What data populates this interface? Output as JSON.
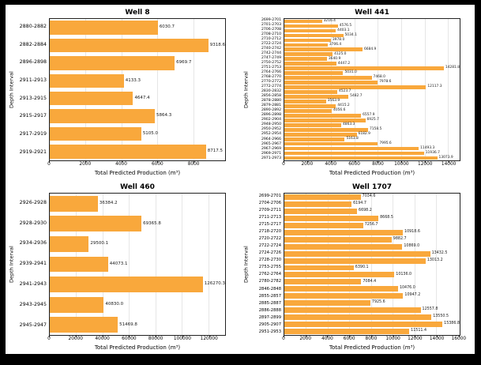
{
  "figure": {
    "background": "#000000",
    "panel_background": "#ffffff",
    "bar_color": "#F9A83C",
    "grid_color": "#e6e6e6"
  },
  "chart_data": [
    {
      "type": "bar",
      "orientation": "horizontal",
      "title": "Well 8",
      "xlabel": "Total Predicted Production (m³)",
      "ylabel": "Depth Interval",
      "categories": [
        "2880-2882",
        "2882-2884",
        "2896-2898",
        "2911-2913",
        "2913-2915",
        "2915-2917",
        "2917-2919",
        "2919-2921"
      ],
      "values": [
        6030.7,
        9318.6,
        6969.7,
        4133.3,
        4647.4,
        5864.3,
        5105.0,
        8717.5
      ],
      "xticks": [
        0,
        2000,
        4000,
        6000,
        8000
      ],
      "xlim": [
        0,
        9785
      ],
      "grid": true,
      "value_labels": true,
      "bar_color": "#F9A83C"
    },
    {
      "type": "bar",
      "orientation": "horizontal",
      "title": "Well 441",
      "xlabel": "Total Predicted Production (m³)",
      "ylabel": "Depth Interval",
      "categories": [
        "2699-2701",
        "2701-2703",
        "2706-2708",
        "2708-2710",
        "2710-2712",
        "2722-2724",
        "2740-2742",
        "2742-2744",
        "2747-2749",
        "2750-2752",
        "2751-2753",
        "2764-2766",
        "2768-2770",
        "2770-2772",
        "2772-2774",
        "2830-2832",
        "2856-2858",
        "2878-2880",
        "2879-2881",
        "2890-2892",
        "2896-2898",
        "2902-2904",
        "2948-2950",
        "2950-2952",
        "2952-2954",
        "2964-2966",
        "2965-2967",
        "2967-2969",
        "2969-2971",
        "2971-2973"
      ],
      "values": [
        3216.4,
        4576.5,
        4403.1,
        5034.1,
        3978.0,
        3706.4,
        6684.9,
        4125.0,
        3640.9,
        4447.2,
        14281.8,
        5031.0,
        7468.0,
        7978.6,
        12117.3,
        4523.7,
        5482.7,
        3563.9,
        4415.2,
        4056.6,
        6557.9,
        6925.7,
        4863.3,
        7158.5,
        6182.9,
        5163.8,
        7995.6,
        11493.3,
        11936.7,
        13073.9
      ],
      "xticks": [
        0,
        2000,
        4000,
        6000,
        8000,
        10000,
        12000,
        14000
      ],
      "xlim": [
        0,
        14996
      ],
      "grid": true,
      "value_labels": true,
      "bar_color": "#F9A83C"
    },
    {
      "type": "bar",
      "orientation": "horizontal",
      "title": "Well 460",
      "xlabel": "Total Predicted Production (m³)",
      "ylabel": "Depth Interval",
      "categories": [
        "2926-2928",
        "2928-2930",
        "2934-2936",
        "2939-2941",
        "2941-2943",
        "2943-2945",
        "2945-2947"
      ],
      "values": [
        36384.2,
        69365.8,
        29500.1,
        44073.1,
        126270.3,
        40830.0,
        51469.8
      ],
      "xticks": [
        0,
        20000,
        40000,
        60000,
        80000,
        100000,
        120000
      ],
      "xlim": [
        0,
        132584
      ],
      "grid": true,
      "value_labels": true,
      "bar_color": "#F9A83C"
    },
    {
      "type": "bar",
      "orientation": "horizontal",
      "title": "Well 1707",
      "xlabel": "Total Predicted Production (m³)",
      "ylabel": "Depth Interval",
      "categories": [
        "2699-2701",
        "2704-2706",
        "2709-2711",
        "2711-2713",
        "2715-2717",
        "2718-2720",
        "2720-2722",
        "2722-2724",
        "2724-2726",
        "2728-2730",
        "2753-2755",
        "2762-2764",
        "2780-2782",
        "2846-2848",
        "2855-2857",
        "2885-2887",
        "2886-2888",
        "2897-2899",
        "2905-2907",
        "2951-2953"
      ],
      "values": [
        7034.6,
        6194.7,
        6698.2,
        8668.5,
        7256.7,
        10918.6,
        9882.7,
        10869.0,
        13432.5,
        13013.2,
        6390.1,
        10136.0,
        7084.4,
        10476.0,
        10947.2,
        7925.6,
        12557.8,
        13550.5,
        15386.8,
        11511.4
      ],
      "xticks": [
        0,
        2000,
        4000,
        6000,
        8000,
        10000,
        12000,
        14000,
        16000
      ],
      "xlim": [
        0,
        16156
      ],
      "grid": true,
      "value_labels": true,
      "bar_color": "#F9A83C"
    }
  ]
}
